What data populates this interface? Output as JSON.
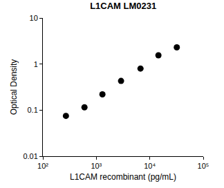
{
  "chart_data": {
    "type": "scatter",
    "title": "L1CAM LM0231",
    "x_label": "L1CAM recombinant (pg/mL)",
    "y_label": "Optical Density",
    "x": [
      270,
      600,
      1300,
      2900,
      6700,
      14500,
      32000
    ],
    "values": [
      0.075,
      0.115,
      0.22,
      0.43,
      0.8,
      1.55,
      2.3
    ],
    "color": "#000000",
    "marker": "circle",
    "log": true,
    "grid": false,
    "xlim": [
      100,
      100000
    ],
    "xticks": [
      {
        "value": 100,
        "label": "10²"
      },
      {
        "value": 1000,
        "label": "10³"
      },
      {
        "value": 10000,
        "label": "10⁴"
      },
      {
        "value": 100000,
        "label": "10⁵"
      }
    ],
    "ylim": [
      0.01,
      10
    ],
    "yticks": [
      0.01,
      0.1,
      1,
      10
    ]
  }
}
